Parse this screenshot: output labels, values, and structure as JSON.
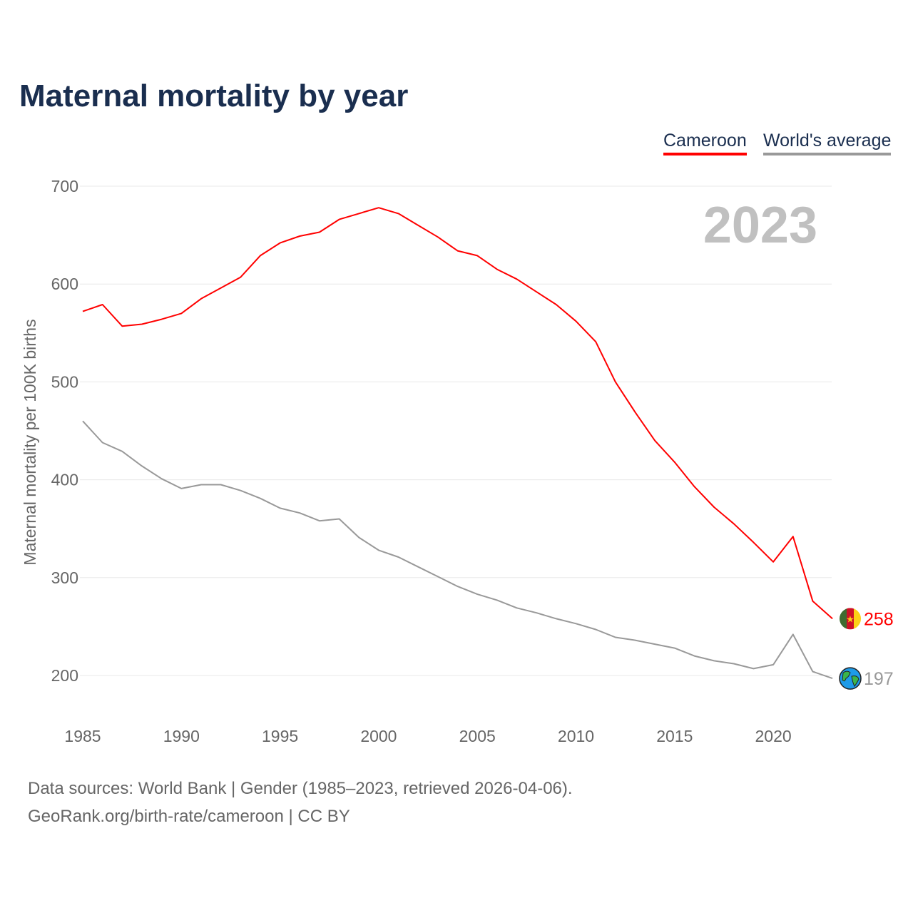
{
  "title": "Maternal mortality by year",
  "legend": {
    "cameroon": "Cameroon",
    "world": "World's average"
  },
  "footer": {
    "line1": "Data sources: World Bank | Gender (1985–2023, retrieved 2026-04-06).",
    "line2": "GeoRank.org/birth-rate/cameroon | CC BY"
  },
  "chart_data": {
    "type": "line",
    "title": "Maternal mortality by year",
    "ylabel": "Maternal mortality per 100K births",
    "xlabel": "",
    "year_watermark": "2023",
    "ylim": [
      150,
      710
    ],
    "xlim": [
      1985,
      2023
    ],
    "yticks": [
      200,
      300,
      400,
      500,
      600,
      700
    ],
    "xticks": [
      1985,
      1990,
      1995,
      2000,
      2005,
      2010,
      2015,
      2020
    ],
    "grid": true,
    "legend_position": "top-right",
    "x": [
      1985,
      1986,
      1987,
      1988,
      1989,
      1990,
      1991,
      1992,
      1993,
      1994,
      1995,
      1996,
      1997,
      1998,
      1999,
      2000,
      2001,
      2002,
      2003,
      2004,
      2005,
      2006,
      2007,
      2008,
      2009,
      2010,
      2011,
      2012,
      2013,
      2014,
      2015,
      2016,
      2017,
      2018,
      2019,
      2020,
      2021,
      2022,
      2023
    ],
    "series": [
      {
        "name": "Cameroon",
        "color": "#ff0000",
        "end_label": "258",
        "values": [
          572,
          579,
          557,
          559,
          564,
          570,
          585,
          596,
          607,
          629,
          642,
          649,
          653,
          666,
          672,
          678,
          672,
          660,
          648,
          634,
          629,
          615,
          605,
          592,
          579,
          562,
          541,
          500,
          469,
          440,
          418,
          393,
          372,
          355,
          336,
          316,
          342,
          276,
          258
        ]
      },
      {
        "name": "World's average",
        "color": "#999999",
        "end_label": "197",
        "values": [
          460,
          438,
          429,
          414,
          401,
          391,
          395,
          395,
          389,
          381,
          371,
          366,
          358,
          360,
          341,
          328,
          321,
          311,
          301,
          291,
          283,
          277,
          269,
          264,
          258,
          253,
          247,
          239,
          236,
          232,
          228,
          220,
          215,
          212,
          207,
          211,
          242,
          204,
          197
        ]
      }
    ]
  }
}
